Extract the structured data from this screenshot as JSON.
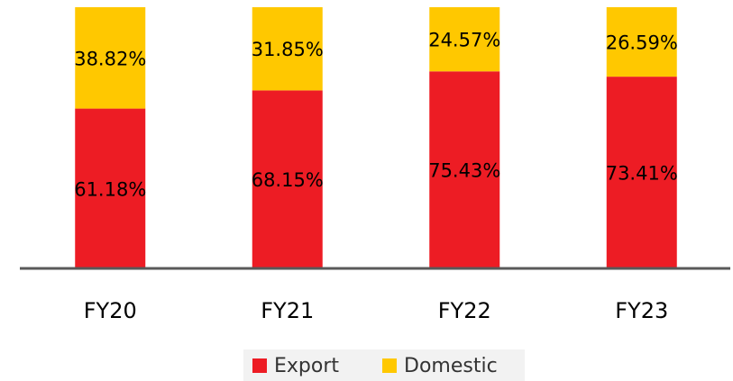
{
  "chart_data": {
    "type": "stacked_bar",
    "categories": [
      "FY20",
      "FY21",
      "FY22",
      "FY23"
    ],
    "series": [
      {
        "name": "Export",
        "color": "#ed1c24",
        "values": [
          61.18,
          68.15,
          75.43,
          73.41
        ],
        "value_labels": [
          "61.18%",
          "68.15%",
          "75.43%",
          "73.41%"
        ]
      },
      {
        "name": "Domestic",
        "color": "#ffc800",
        "values": [
          38.82,
          31.85,
          24.57,
          26.59
        ],
        "value_labels": [
          "38.82%",
          "31.85%",
          "24.57%",
          "26.59%"
        ]
      }
    ],
    "ylim": [
      0,
      100
    ]
  }
}
